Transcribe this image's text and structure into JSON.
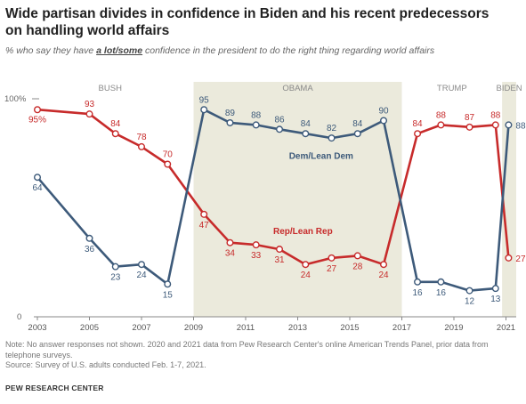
{
  "title": "Wide partisan divides in confidence in Biden and his recent predecessors on handling world affairs",
  "subtitle_pre": "% who say they have ",
  "subtitle_emph": "a lot/some",
  "subtitle_post": " confidence in the president to do the right thing regarding world affairs",
  "notes": [
    "Note: No answer responses not shown. 2020 and 2021 data from Pew Research Center's online American Trends Panel, prior data from telephone surveys.",
    "Source: Survey of U.S. adults conducted Feb. 1-7, 2021."
  ],
  "brand": "PEW RESEARCH CENTER",
  "colors": {
    "rep": "#c72b2b",
    "dem": "#3d5a7a",
    "shade": "#ebeadc",
    "label": "#8a8a8a"
  },
  "chart_data": {
    "type": "line",
    "xlim": [
      2003,
      2021
    ],
    "ylim": [
      0,
      100
    ],
    "y_tick_labels": [
      "100%",
      "0"
    ],
    "x_tick_labels": [
      "2003",
      "2005",
      "2007",
      "2009",
      "2011",
      "2013",
      "2015",
      "2017",
      "2019",
      "2021"
    ],
    "eras": [
      {
        "name": "BUSH",
        "start": 2001.5,
        "end": 2009,
        "shaded": false
      },
      {
        "name": "OBAMA",
        "start": 2009,
        "end": 2017,
        "shaded": true
      },
      {
        "name": "TRUMP",
        "start": 2017,
        "end": 2020.85,
        "shaded": false
      },
      {
        "name": "BIDEN",
        "start": 2020.85,
        "end": 2022,
        "shaded": true
      }
    ],
    "series": [
      {
        "name": "Rep/Lean Rep",
        "color": "#c72b2b",
        "points": [
          {
            "x": 2003.0,
            "y": 95,
            "label": "95%"
          },
          {
            "x": 2005.0,
            "y": 93,
            "label": "93"
          },
          {
            "x": 2006.0,
            "y": 84,
            "label": "84"
          },
          {
            "x": 2007.0,
            "y": 78,
            "label": "78"
          },
          {
            "x": 2008.0,
            "y": 70,
            "label": "70"
          },
          {
            "x": 2009.4,
            "y": 47,
            "label": "47"
          },
          {
            "x": 2010.4,
            "y": 34,
            "label": "34"
          },
          {
            "x": 2011.4,
            "y": 33,
            "label": "33"
          },
          {
            "x": 2012.3,
            "y": 31,
            "label": "31"
          },
          {
            "x": 2013.3,
            "y": 24,
            "label": "24"
          },
          {
            "x": 2014.3,
            "y": 27,
            "label": "27"
          },
          {
            "x": 2015.3,
            "y": 28,
            "label": "28"
          },
          {
            "x": 2016.3,
            "y": 24,
            "label": "24"
          },
          {
            "x": 2017.6,
            "y": 84,
            "label": "84"
          },
          {
            "x": 2018.5,
            "y": 88,
            "label": "88"
          },
          {
            "x": 2019.6,
            "y": 87,
            "label": "87"
          },
          {
            "x": 2020.6,
            "y": 88,
            "label": "88"
          },
          {
            "x": 2021.1,
            "y": 27,
            "label": "27"
          }
        ]
      },
      {
        "name": "Dem/Lean Dem",
        "color": "#3d5a7a",
        "points": [
          {
            "x": 2003.0,
            "y": 64,
            "label": "64"
          },
          {
            "x": 2005.0,
            "y": 36,
            "label": "36"
          },
          {
            "x": 2006.0,
            "y": 23,
            "label": "23"
          },
          {
            "x": 2007.0,
            "y": 24,
            "label": "24"
          },
          {
            "x": 2008.0,
            "y": 15,
            "label": "15"
          },
          {
            "x": 2009.4,
            "y": 95,
            "label": "95"
          },
          {
            "x": 2010.4,
            "y": 89,
            "label": "89"
          },
          {
            "x": 2011.4,
            "y": 88,
            "label": "88"
          },
          {
            "x": 2012.3,
            "y": 86,
            "label": "86"
          },
          {
            "x": 2013.3,
            "y": 84,
            "label": "84"
          },
          {
            "x": 2014.3,
            "y": 82,
            "label": "82"
          },
          {
            "x": 2015.3,
            "y": 84,
            "label": "84"
          },
          {
            "x": 2016.3,
            "y": 90,
            "label": "90"
          },
          {
            "x": 2017.6,
            "y": 16,
            "label": "16"
          },
          {
            "x": 2018.5,
            "y": 16,
            "label": "16"
          },
          {
            "x": 2019.6,
            "y": 12,
            "label": "12"
          },
          {
            "x": 2020.6,
            "y": 13,
            "label": "13"
          },
          {
            "x": 2021.1,
            "y": 88,
            "label": "88"
          }
        ]
      }
    ]
  }
}
